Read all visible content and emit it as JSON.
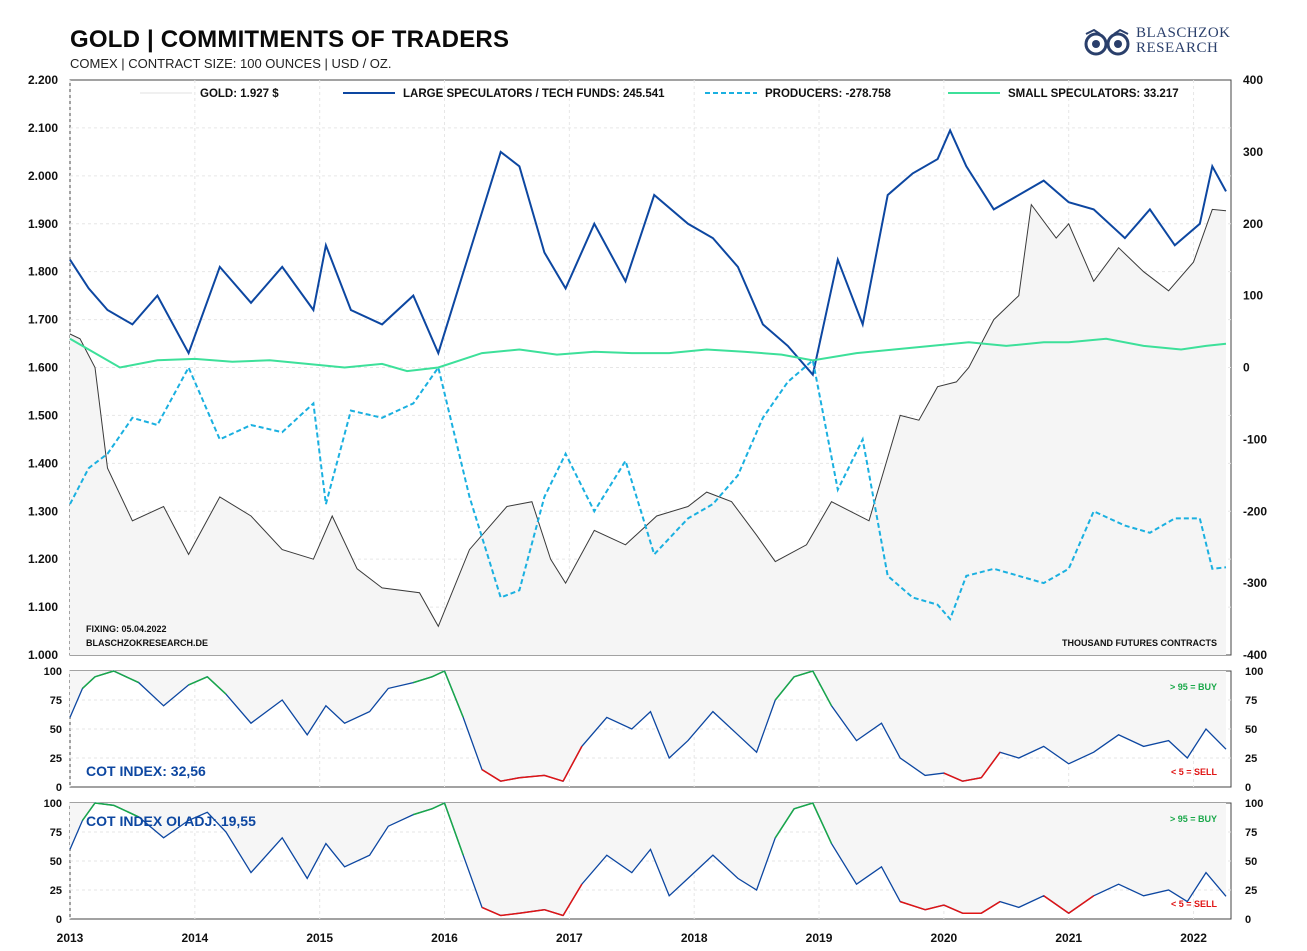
{
  "header": {
    "title": "GOLD | COMMITMENTS OF TRADERS",
    "subtitle": "COMEX | CONTRACT SIZE: 100 OUNCES | USD / OZ.",
    "logo_line1": "BLASCHZOK",
    "logo_line2": "RESEARCH"
  },
  "colors": {
    "gold": "#3a3a3a",
    "large_specs": "#0d47a1",
    "producers": "#1ab0e0",
    "small_specs": "#3de09a",
    "buy": "#1aa84a",
    "sell": "#e01414"
  },
  "chart_data": [
    {
      "type": "line",
      "panel": "main",
      "legend": [
        {
          "label": "GOLD: 1.927 $",
          "style": "gold"
        },
        {
          "label": "LARGE SPECULATORS / TECH FUNDS: 245.541",
          "style": "large_specs"
        },
        {
          "label": "PRODUCERS: -278.758",
          "style": "producers"
        },
        {
          "label": "SMALL SPECULATORS: 33.217",
          "style": "small_specs"
        }
      ],
      "x_ticks": [
        "2013",
        "2014",
        "2015",
        "2016",
        "2017",
        "2018",
        "2019",
        "2020",
        "2021",
        "2022"
      ],
      "x_range": [
        2013.0,
        2022.3
      ],
      "y_left_ticks": [
        "1.000",
        "1.100",
        "1.200",
        "1.300",
        "1.400",
        "1.500",
        "1.600",
        "1.700",
        "1.800",
        "1.900",
        "2.000",
        "2.100",
        "2.200"
      ],
      "y_left_range": [
        1000,
        2200
      ],
      "y_right_ticks": [
        "-400",
        "-300",
        "-200",
        "-100",
        "0",
        "100",
        "200",
        "300",
        "400"
      ],
      "y_right_range": [
        -400,
        400
      ],
      "annotations": {
        "fixing": "FIXING:  05.04.2022",
        "site": "BLASCHZOKRESEARCH.DE",
        "units": "THOUSAND  FUTURES  CONTRACTS"
      },
      "series": [
        {
          "name": "GOLD",
          "key": "gold",
          "axis": "left",
          "x": [
            2013.0,
            2013.08,
            2013.2,
            2013.3,
            2013.5,
            2013.75,
            2013.95,
            2014.2,
            2014.45,
            2014.7,
            2014.95,
            2015.1,
            2015.3,
            2015.5,
            2015.8,
            2015.95,
            2016.2,
            2016.5,
            2016.7,
            2016.85,
            2016.97,
            2017.2,
            2017.45,
            2017.7,
            2017.95,
            2018.1,
            2018.3,
            2018.5,
            2018.65,
            2018.9,
            2019.1,
            2019.4,
            2019.65,
            2019.8,
            2019.95,
            2020.1,
            2020.2,
            2020.4,
            2020.6,
            2020.7,
            2020.9,
            2021.0,
            2021.2,
            2021.4,
            2021.6,
            2021.8,
            2022.0,
            2022.15,
            2022.26
          ],
          "y": [
            1670,
            1660,
            1600,
            1390,
            1280,
            1310,
            1210,
            1330,
            1290,
            1220,
            1200,
            1290,
            1180,
            1140,
            1130,
            1060,
            1220,
            1310,
            1320,
            1200,
            1150,
            1260,
            1230,
            1290,
            1310,
            1340,
            1320,
            1250,
            1195,
            1230,
            1320,
            1280,
            1500,
            1490,
            1560,
            1570,
            1600,
            1700,
            1750,
            1940,
            1870,
            1900,
            1780,
            1850,
            1800,
            1760,
            1820,
            1930,
            1927
          ]
        },
        {
          "name": "LARGE SPECULATORS / TECH FUNDS",
          "key": "large_specs",
          "axis": "right",
          "x": [
            2013.0,
            2013.15,
            2013.3,
            2013.5,
            2013.7,
            2013.95,
            2014.2,
            2014.45,
            2014.7,
            2014.95,
            2015.05,
            2015.25,
            2015.5,
            2015.75,
            2015.95,
            2016.2,
            2016.45,
            2016.6,
            2016.8,
            2016.97,
            2017.2,
            2017.45,
            2017.68,
            2017.95,
            2018.15,
            2018.35,
            2018.55,
            2018.75,
            2018.95,
            2019.15,
            2019.35,
            2019.55,
            2019.75,
            2019.95,
            2020.05,
            2020.18,
            2020.4,
            2020.6,
            2020.8,
            2021.0,
            2021.2,
            2021.45,
            2021.65,
            2021.85,
            2022.05,
            2022.15,
            2022.26
          ],
          "y": [
            150,
            110,
            80,
            60,
            100,
            20,
            140,
            90,
            140,
            80,
            170,
            80,
            60,
            100,
            20,
            160,
            300,
            280,
            160,
            110,
            200,
            120,
            240,
            200,
            180,
            140,
            60,
            30,
            -10,
            150,
            60,
            240,
            270,
            290,
            330,
            280,
            220,
            240,
            260,
            230,
            220,
            180,
            220,
            170,
            200,
            280,
            245
          ]
        },
        {
          "name": "PRODUCERS",
          "key": "producers",
          "axis": "right",
          "x": [
            2013.0,
            2013.15,
            2013.3,
            2013.5,
            2013.7,
            2013.95,
            2014.2,
            2014.45,
            2014.7,
            2014.95,
            2015.05,
            2015.25,
            2015.5,
            2015.75,
            2015.95,
            2016.2,
            2016.45,
            2016.6,
            2016.8,
            2016.97,
            2017.2,
            2017.45,
            2017.68,
            2017.95,
            2018.15,
            2018.35,
            2018.55,
            2018.75,
            2018.95,
            2019.15,
            2019.35,
            2019.55,
            2019.75,
            2019.95,
            2020.05,
            2020.18,
            2020.4,
            2020.6,
            2020.8,
            2021.0,
            2021.2,
            2021.45,
            2021.65,
            2021.85,
            2022.05,
            2022.15,
            2022.26
          ],
          "y": [
            -190,
            -140,
            -120,
            -70,
            -80,
            0,
            -100,
            -80,
            -90,
            -50,
            -190,
            -60,
            -70,
            -50,
            0,
            -180,
            -320,
            -310,
            -180,
            -120,
            -200,
            -130,
            -260,
            -210,
            -190,
            -150,
            -70,
            -20,
            10,
            -170,
            -100,
            -290,
            -320,
            -330,
            -350,
            -290,
            -280,
            -290,
            -300,
            -280,
            -200,
            -220,
            -230,
            -210,
            -210,
            -280,
            -278
          ]
        },
        {
          "name": "SMALL SPECULATORS",
          "key": "small_specs",
          "axis": "right",
          "x": [
            2013.0,
            2013.2,
            2013.4,
            2013.7,
            2014.0,
            2014.3,
            2014.6,
            2014.9,
            2015.2,
            2015.5,
            2015.7,
            2015.95,
            2016.3,
            2016.6,
            2016.9,
            2017.2,
            2017.5,
            2017.8,
            2018.1,
            2018.4,
            2018.7,
            2018.95,
            2019.3,
            2019.6,
            2019.9,
            2020.2,
            2020.5,
            2020.8,
            2021.0,
            2021.3,
            2021.6,
            2021.9,
            2022.1,
            2022.26
          ],
          "y": [
            40,
            20,
            0,
            10,
            12,
            8,
            10,
            5,
            0,
            5,
            -5,
            0,
            20,
            25,
            18,
            22,
            20,
            20,
            25,
            22,
            18,
            10,
            20,
            25,
            30,
            35,
            30,
            35,
            35,
            40,
            30,
            25,
            30,
            33
          ]
        }
      ]
    },
    {
      "type": "line",
      "panel": "cot_index",
      "label": "COT INDEX: 32,56",
      "y_ticks": [
        "0",
        "25",
        "50",
        "75",
        "100"
      ],
      "y_range": [
        0,
        100
      ],
      "buy_label": "> 95 = BUY",
      "sell_label": "< 5 = SELL",
      "x": [
        2013.0,
        2013.1,
        2013.2,
        2013.35,
        2013.55,
        2013.75,
        2013.95,
        2014.1,
        2014.25,
        2014.45,
        2014.7,
        2014.9,
        2015.05,
        2015.2,
        2015.4,
        2015.55,
        2015.75,
        2015.9,
        2016.0,
        2016.15,
        2016.3,
        2016.45,
        2016.6,
        2016.8,
        2016.95,
        2017.1,
        2017.3,
        2017.5,
        2017.65,
        2017.8,
        2017.95,
        2018.15,
        2018.35,
        2018.5,
        2018.65,
        2018.8,
        2018.95,
        2019.1,
        2019.3,
        2019.5,
        2019.65,
        2019.85,
        2020.0,
        2020.15,
        2020.3,
        2020.45,
        2020.6,
        2020.8,
        2021.0,
        2021.2,
        2021.4,
        2021.6,
        2021.8,
        2021.95,
        2022.1,
        2022.26
      ],
      "y": [
        60,
        85,
        95,
        100,
        90,
        70,
        88,
        95,
        80,
        55,
        75,
        45,
        70,
        55,
        65,
        85,
        90,
        95,
        100,
        60,
        15,
        5,
        8,
        10,
        5,
        35,
        60,
        50,
        65,
        25,
        40,
        65,
        45,
        30,
        75,
        95,
        100,
        70,
        40,
        55,
        25,
        10,
        12,
        5,
        8,
        30,
        25,
        35,
        20,
        30,
        45,
        35,
        40,
        25,
        50,
        32.56
      ]
    },
    {
      "type": "line",
      "panel": "cot_index_oi",
      "label": "COT INDEX OI ADJ: 19,55",
      "y_ticks": [
        "0",
        "25",
        "50",
        "75",
        "100"
      ],
      "y_range": [
        0,
        100
      ],
      "buy_label": "> 95 = BUY",
      "sell_label": "< 5 = SELL",
      "x": [
        2013.0,
        2013.1,
        2013.2,
        2013.35,
        2013.55,
        2013.75,
        2013.95,
        2014.1,
        2014.25,
        2014.45,
        2014.7,
        2014.9,
        2015.05,
        2015.2,
        2015.4,
        2015.55,
        2015.75,
        2015.9,
        2016.0,
        2016.15,
        2016.3,
        2016.45,
        2016.6,
        2016.8,
        2016.95,
        2017.1,
        2017.3,
        2017.5,
        2017.65,
        2017.8,
        2017.95,
        2018.15,
        2018.35,
        2018.5,
        2018.65,
        2018.8,
        2018.95,
        2019.1,
        2019.3,
        2019.5,
        2019.65,
        2019.85,
        2020.0,
        2020.15,
        2020.3,
        2020.45,
        2020.6,
        2020.8,
        2021.0,
        2021.2,
        2021.4,
        2021.6,
        2021.8,
        2021.95,
        2022.1,
        2022.26
      ],
      "y": [
        60,
        85,
        100,
        98,
        88,
        70,
        85,
        92,
        75,
        40,
        70,
        35,
        65,
        45,
        55,
        80,
        90,
        95,
        100,
        55,
        10,
        3,
        5,
        8,
        3,
        30,
        55,
        40,
        60,
        20,
        35,
        55,
        35,
        25,
        70,
        95,
        100,
        65,
        30,
        45,
        15,
        8,
        12,
        5,
        5,
        15,
        10,
        20,
        5,
        20,
        30,
        20,
        25,
        15,
        40,
        19.55
      ]
    }
  ]
}
